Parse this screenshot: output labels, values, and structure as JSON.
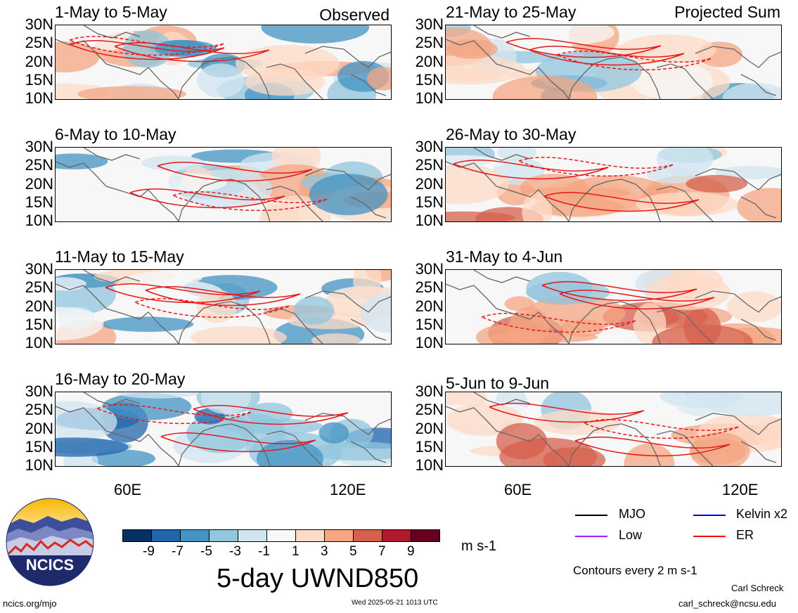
{
  "chart_data": {
    "type": "heatmap",
    "title": "5-day UWND850",
    "units": "m s-1",
    "contour_note": "Contours every 2 m s-1",
    "columns": [
      {
        "label": "Observed",
        "panels": [
          "1-May to 5-May",
          "6-May to 10-May",
          "11-May to 15-May",
          "16-May to 20-May"
        ]
      },
      {
        "label": "Projected Sum",
        "panels": [
          "21-May to 25-May",
          "26-May to 30-May",
          "31-May to 4-Jun",
          "5-Jun to 9-Jun"
        ]
      }
    ],
    "y_ticks": [
      "30N",
      "25N",
      "20N",
      "15N",
      "10N"
    ],
    "x_ticks": [
      "60E",
      "120E"
    ],
    "ylim": [
      10,
      30
    ],
    "colorbar": {
      "ticks": [
        "-9",
        "-7",
        "-5",
        "-3",
        "-1",
        "1",
        "3",
        "5",
        "7",
        "9"
      ],
      "colors": [
        "#053061",
        "#2166ac",
        "#4393c3",
        "#92c5de",
        "#d1e5f0",
        "#f7f7f7",
        "#fddbc7",
        "#f4a582",
        "#d6604d",
        "#b2182b",
        "#67001f"
      ]
    },
    "legend": [
      {
        "label": "MJO",
        "color": "#000000"
      },
      {
        "label": "Kelvin x2",
        "color": "#0000ff"
      },
      {
        "label": "Low",
        "color": "#a020f0"
      },
      {
        "label": "ER",
        "color": "#ff0000"
      }
    ]
  },
  "logo_text": "NCICS",
  "footer": {
    "site": "ncics.org/mjo",
    "timestamp": "Wed 2025-05-21 1013 UTC",
    "author": "Carl Schreck",
    "email": "carl_schreck@ncsu.edu"
  }
}
